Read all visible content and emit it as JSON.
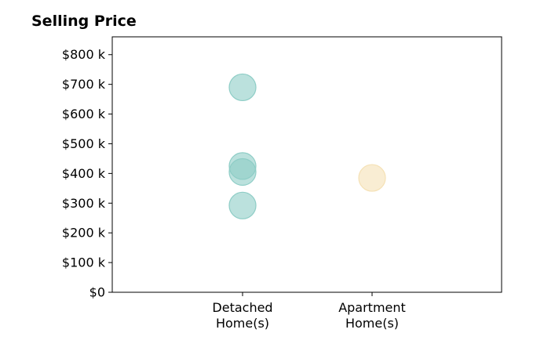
{
  "chart_data": {
    "type": "scatter",
    "title": "Selling Price",
    "xlabel": "",
    "ylabel": "",
    "categories": [
      [
        "Detached",
        "Home(s)"
      ],
      [
        "Apartment",
        "Home(s)"
      ]
    ],
    "ylim": [
      0,
      860000
    ],
    "yticks": [
      0,
      100000,
      200000,
      300000,
      400000,
      500000,
      600000,
      700000,
      800000
    ],
    "ytick_labels": [
      "$0",
      "$100 k",
      "$200 k",
      "$300 k",
      "$400 k",
      "$500 k",
      "$600 k",
      "$700 k",
      "$800 k"
    ],
    "grid": false,
    "legend": "none",
    "series": [
      {
        "category_index": 0,
        "color": "#8ecdc6",
        "values": [
          690000,
          425000,
          405000,
          292000
        ]
      },
      {
        "category_index": 1,
        "color": "#f5e1b5",
        "values": [
          385000
        ]
      }
    ]
  }
}
